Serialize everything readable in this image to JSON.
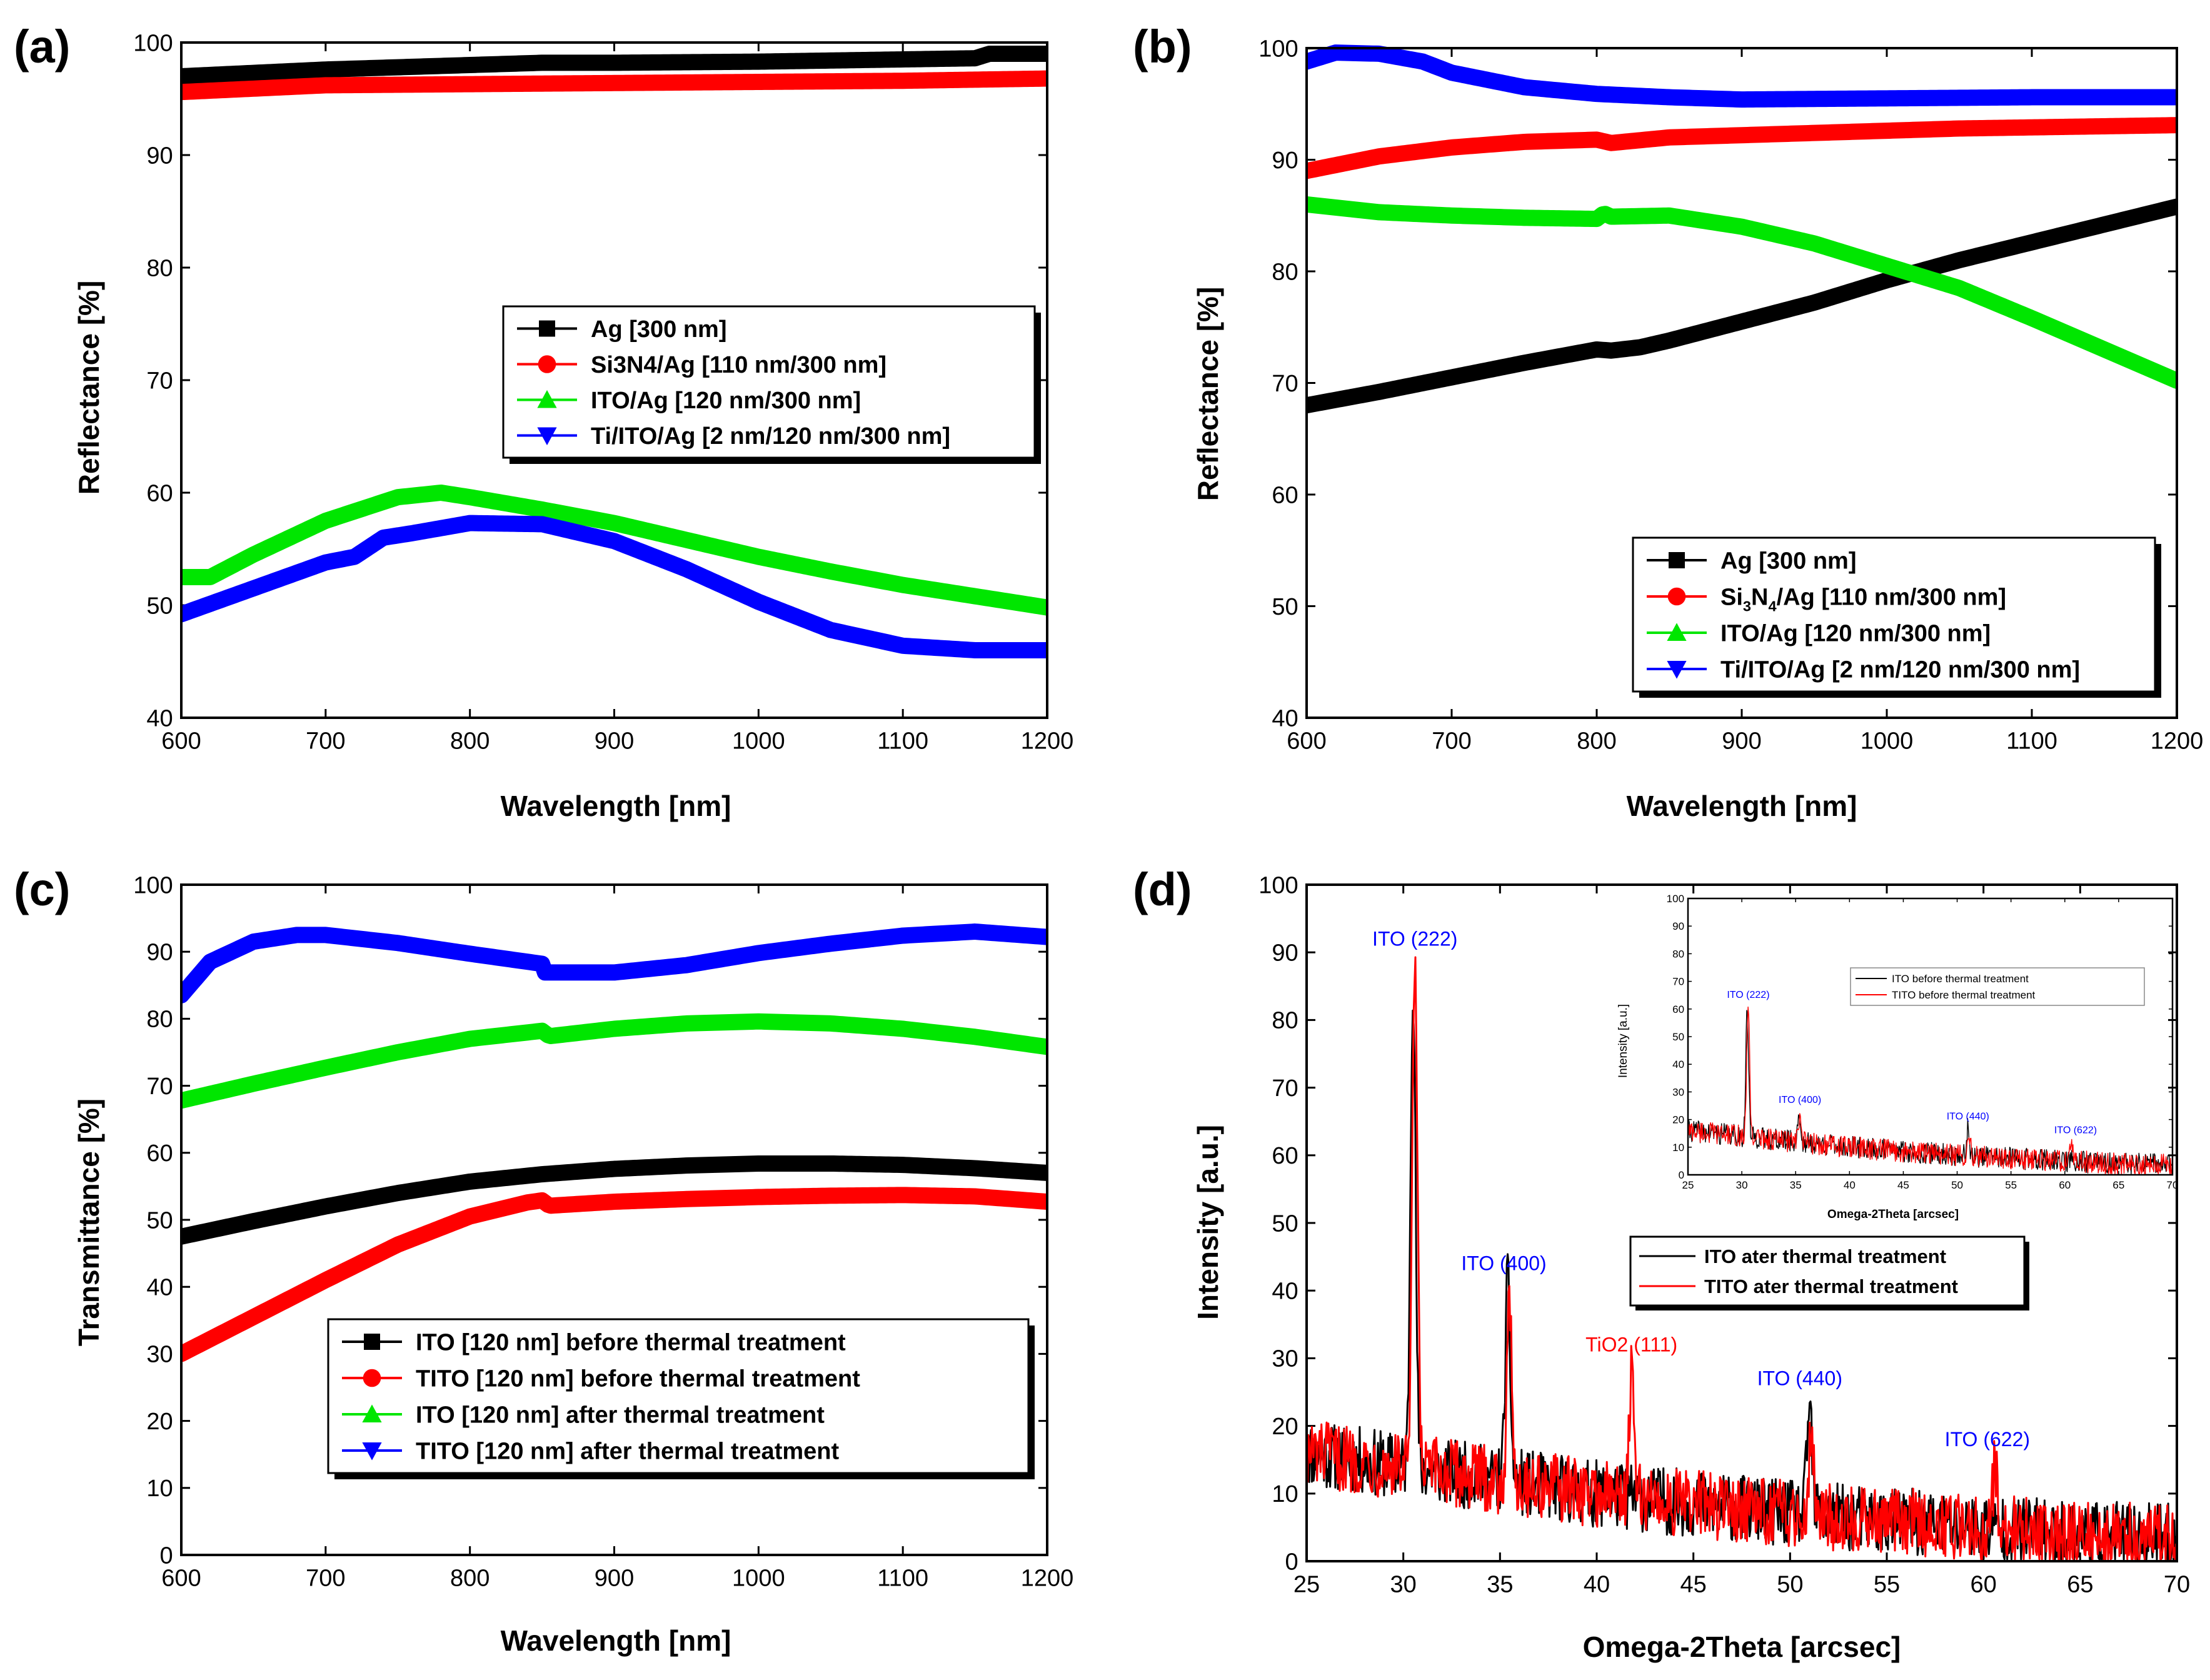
{
  "figure": {
    "panel_labels": [
      "(a)",
      "(b)",
      "(c)",
      "(d)"
    ],
    "colors": {
      "black": "#000000",
      "red": "#ff0000",
      "green": "#00e600",
      "blue": "#0000ff",
      "peak_blue": "#0000ff",
      "peak_red": "#ff0000"
    }
  },
  "chart_data": [
    {
      "id": "a",
      "type": "line",
      "xlabel": "Wavelength [nm]",
      "ylabel": "Reflectance [%]",
      "xlim": [
        600,
        1200
      ],
      "ylim": [
        40,
        100
      ],
      "xticks": [
        600,
        700,
        800,
        900,
        1000,
        1100,
        1200
      ],
      "yticks": [
        40,
        50,
        60,
        70,
        80,
        90,
        100
      ],
      "legend_position": "center-right",
      "series": [
        {
          "name": "Ag [300 nm]",
          "color": "black",
          "marker": "square",
          "x": [
            600,
            700,
            800,
            850,
            900,
            1000,
            1100,
            1150,
            1160,
            1200
          ],
          "y": [
            97.0,
            97.6,
            98.0,
            98.2,
            98.2,
            98.3,
            98.5,
            98.6,
            99.0,
            99.0
          ]
        },
        {
          "name": "Si3N4/Ag [110 nm/300 nm]",
          "color": "red",
          "marker": "circle",
          "x": [
            600,
            700,
            800,
            900,
            1000,
            1100,
            1200
          ],
          "y": [
            95.6,
            96.2,
            96.3,
            96.4,
            96.5,
            96.6,
            96.8
          ]
        },
        {
          "name": "ITO/Ag [120 nm/300 nm]",
          "color": "green",
          "marker": "triangle-up",
          "x": [
            600,
            620,
            650,
            700,
            750,
            780,
            800,
            850,
            900,
            950,
            1000,
            1050,
            1100,
            1150,
            1200
          ],
          "y": [
            52.5,
            52.5,
            54.5,
            57.5,
            59.6,
            60.0,
            59.6,
            58.5,
            57.3,
            55.8,
            54.3,
            53.0,
            51.8,
            50.8,
            49.8
          ]
        },
        {
          "name": "Ti/ITO/Ag [2 nm/120 nm/300 nm]",
          "color": "blue",
          "marker": "triangle-down",
          "x": [
            600,
            650,
            700,
            720,
            740,
            760,
            800,
            850,
            900,
            950,
            1000,
            1050,
            1100,
            1150,
            1200
          ],
          "y": [
            49.2,
            51.5,
            53.8,
            54.3,
            56.0,
            56.4,
            57.3,
            57.2,
            55.7,
            53.2,
            50.3,
            47.8,
            46.4,
            46.0,
            46.0
          ]
        }
      ]
    },
    {
      "id": "b",
      "type": "line",
      "xlabel": "Wavelength [nm]",
      "ylabel": "Reflectance [%]",
      "xlim": [
        600,
        1200
      ],
      "ylim": [
        40,
        100
      ],
      "xticks": [
        600,
        700,
        800,
        900,
        1000,
        1100,
        1200
      ],
      "yticks": [
        40,
        50,
        60,
        70,
        80,
        90,
        100
      ],
      "legend_position": "bottom-right",
      "series": [
        {
          "name": "Ag [300 nm]",
          "color": "black",
          "marker": "square",
          "x": [
            600,
            650,
            700,
            750,
            800,
            810,
            830,
            850,
            900,
            950,
            1000,
            1050,
            1100,
            1150,
            1200
          ],
          "y": [
            68.0,
            69.2,
            70.5,
            71.8,
            73.0,
            72.9,
            73.2,
            73.8,
            75.5,
            77.2,
            79.2,
            81.0,
            82.6,
            84.2,
            85.8
          ]
        },
        {
          "name": "Si3N4/Ag [110 nm/300 nm]",
          "color": "red",
          "marker": "circle",
          "name_parts": [
            "Si",
            "3",
            "N",
            "4",
            "/Ag [110 nm/300 nm]"
          ],
          "x": [
            600,
            650,
            700,
            750,
            800,
            810,
            850,
            900,
            950,
            1000,
            1050,
            1100,
            1150,
            1200
          ],
          "y": [
            89.0,
            90.3,
            91.1,
            91.6,
            91.8,
            91.5,
            92.0,
            92.2,
            92.4,
            92.6,
            92.8,
            92.9,
            93.0,
            93.1
          ]
        },
        {
          "name": "ITO/Ag [120 nm/300 nm]",
          "color": "green",
          "marker": "triangle-up",
          "x": [
            600,
            650,
            700,
            750,
            800,
            805,
            810,
            850,
            900,
            950,
            1000,
            1050,
            1100,
            1150,
            1200
          ],
          "y": [
            86.0,
            85.3,
            85.0,
            84.8,
            84.7,
            85.2,
            84.9,
            85.0,
            84.0,
            82.5,
            80.5,
            78.5,
            75.8,
            73.0,
            70.2
          ]
        },
        {
          "name": "Ti/ITO/Ag [2 nm/120 nm/300 nm]",
          "color": "blue",
          "marker": "triangle-down",
          "x": [
            600,
            620,
            650,
            680,
            700,
            750,
            800,
            850,
            900,
            1000,
            1100,
            1200
          ],
          "y": [
            98.8,
            99.6,
            99.5,
            98.8,
            97.8,
            96.5,
            95.9,
            95.6,
            95.4,
            95.5,
            95.6,
            95.6
          ]
        }
      ]
    },
    {
      "id": "c",
      "type": "line",
      "xlabel": "Wavelength [nm]",
      "ylabel": "Transmittance [%]",
      "xlim": [
        600,
        1200
      ],
      "ylim": [
        0,
        100
      ],
      "xticks": [
        600,
        700,
        800,
        900,
        1000,
        1100,
        1200
      ],
      "yticks": [
        0,
        10,
        20,
        30,
        40,
        50,
        60,
        70,
        80,
        90,
        100
      ],
      "legend_position": "bottom-center",
      "series": [
        {
          "name": "ITO [120 nm] before thermal treatment",
          "color": "black",
          "marker": "square",
          "x": [
            600,
            650,
            700,
            750,
            800,
            850,
            900,
            950,
            1000,
            1050,
            1100,
            1150,
            1200
          ],
          "y": [
            47.5,
            49.8,
            52.0,
            54.0,
            55.7,
            56.8,
            57.6,
            58.1,
            58.4,
            58.4,
            58.2,
            57.7,
            57.0
          ]
        },
        {
          "name": "TITO [120 nm] before thermal treatment",
          "color": "red",
          "marker": "circle",
          "x": [
            600,
            650,
            700,
            750,
            800,
            840,
            850,
            855,
            900,
            950,
            1000,
            1050,
            1100,
            1150,
            1200
          ],
          "y": [
            30.0,
            35.5,
            41.0,
            46.3,
            50.5,
            52.6,
            52.9,
            52.1,
            52.7,
            53.1,
            53.4,
            53.6,
            53.7,
            53.5,
            52.7
          ]
        },
        {
          "name": "ITO [120 nm] after thermal treatment",
          "color": "green",
          "marker": "triangle-up",
          "x": [
            600,
            650,
            700,
            750,
            800,
            850,
            855,
            900,
            950,
            1000,
            1050,
            1100,
            1150,
            1200
          ],
          "y": [
            67.8,
            70.3,
            72.7,
            75.0,
            77.0,
            78.2,
            77.4,
            78.5,
            79.3,
            79.6,
            79.3,
            78.5,
            77.3,
            75.8
          ]
        },
        {
          "name": "TITO [120 nm] after thermal treatment",
          "color": "blue",
          "marker": "triangle-down",
          "x": [
            600,
            620,
            650,
            680,
            700,
            750,
            800,
            850,
            852,
            900,
            950,
            1000,
            1050,
            1100,
            1150,
            1200
          ],
          "y": [
            83.5,
            88.5,
            91.5,
            92.5,
            92.5,
            91.3,
            89.7,
            88.2,
            86.9,
            86.9,
            88.0,
            89.8,
            91.2,
            92.4,
            93.0,
            92.2
          ]
        }
      ]
    },
    {
      "id": "d",
      "type": "line",
      "xlabel": "Omega-2Theta [arcsec]",
      "ylabel": "Intensity [a.u.]",
      "xlim": [
        25,
        70
      ],
      "ylim": [
        0,
        100
      ],
      "xticks": [
        25,
        30,
        35,
        40,
        45,
        50,
        55,
        60,
        65,
        70
      ],
      "yticks": [
        0,
        10,
        20,
        30,
        40,
        50,
        60,
        70,
        80,
        90,
        100
      ],
      "legend_position": "center-right",
      "background": {
        "x": [
          25,
          30,
          35,
          40,
          45,
          50,
          55,
          60,
          65,
          70
        ],
        "y": [
          16,
          14,
          12,
          10,
          8.5,
          7,
          6,
          5,
          4,
          3.5
        ],
        "noise": 5
      },
      "series": [
        {
          "name": "ITO ater thermal treatment",
          "color": "black",
          "peaks": [
            {
              "x": 30.5,
              "y": 86
            },
            {
              "x": 35.4,
              "y": 41
            },
            {
              "x": 51.0,
              "y": 23
            }
          ]
        },
        {
          "name": "TITO ater thermal treatment",
          "color": "red",
          "peaks": [
            {
              "x": 30.6,
              "y": 88
            },
            {
              "x": 35.5,
              "y": 38
            },
            {
              "x": 41.8,
              "y": 27
            },
            {
              "x": 51.1,
              "y": 20
            },
            {
              "x": 60.6,
              "y": 13.5
            }
          ]
        }
      ],
      "annotations": [
        {
          "text": "ITO (222)",
          "x": 30.6,
          "y": 91,
          "color": "peak_blue"
        },
        {
          "text": "ITO (400)",
          "x": 35.2,
          "y": 43,
          "color": "peak_blue"
        },
        {
          "text": "TiO2 (111)",
          "x": 41.8,
          "y": 31,
          "color": "peak_red"
        },
        {
          "text": "ITO (440)",
          "x": 50.5,
          "y": 26,
          "color": "peak_blue"
        },
        {
          "text": "ITO (622)",
          "x": 60.2,
          "y": 17,
          "color": "peak_blue"
        }
      ],
      "inset": {
        "type": "line",
        "xlabel": "Omega-2Theta [arcsec]",
        "ylabel": "Intensity [a.u.]",
        "xlim": [
          25,
          70
        ],
        "ylim": [
          0,
          100
        ],
        "xticks": [
          25,
          30,
          35,
          40,
          45,
          50,
          55,
          60,
          65,
          70
        ],
        "yticks": [
          0,
          10,
          20,
          30,
          40,
          50,
          60,
          70,
          80,
          90,
          100
        ],
        "legend_position": "top-right",
        "background": {
          "x": [
            25,
            30,
            35,
            40,
            45,
            50,
            55,
            60,
            65,
            70
          ],
          "y": [
            16,
            14,
            12,
            10,
            8.5,
            7,
            6,
            5,
            4,
            3.5
          ],
          "noise": 4
        },
        "series": [
          {
            "name": "ITO before thermal treatment",
            "color": "black",
            "peaks": [
              {
                "x": 30.5,
                "y": 60
              },
              {
                "x": 35.3,
                "y": 22
              },
              {
                "x": 51.0,
                "y": 17
              }
            ]
          },
          {
            "name": "TITO before thermal treatment",
            "color": "red",
            "peaks": [
              {
                "x": 30.6,
                "y": 62
              },
              {
                "x": 35.4,
                "y": 20
              },
              {
                "x": 51.1,
                "y": 16
              },
              {
                "x": 60.6,
                "y": 12
              }
            ]
          }
        ],
        "annotations": [
          {
            "text": "ITO (222)",
            "x": 30.6,
            "y": 64,
            "color": "peak_blue"
          },
          {
            "text": "ITO (400)",
            "x": 35.4,
            "y": 26,
            "color": "peak_blue"
          },
          {
            "text": "ITO (440)",
            "x": 51.0,
            "y": 20,
            "color": "peak_blue"
          },
          {
            "text": "ITO (622)",
            "x": 61.0,
            "y": 15,
            "color": "peak_blue"
          }
        ]
      }
    }
  ]
}
